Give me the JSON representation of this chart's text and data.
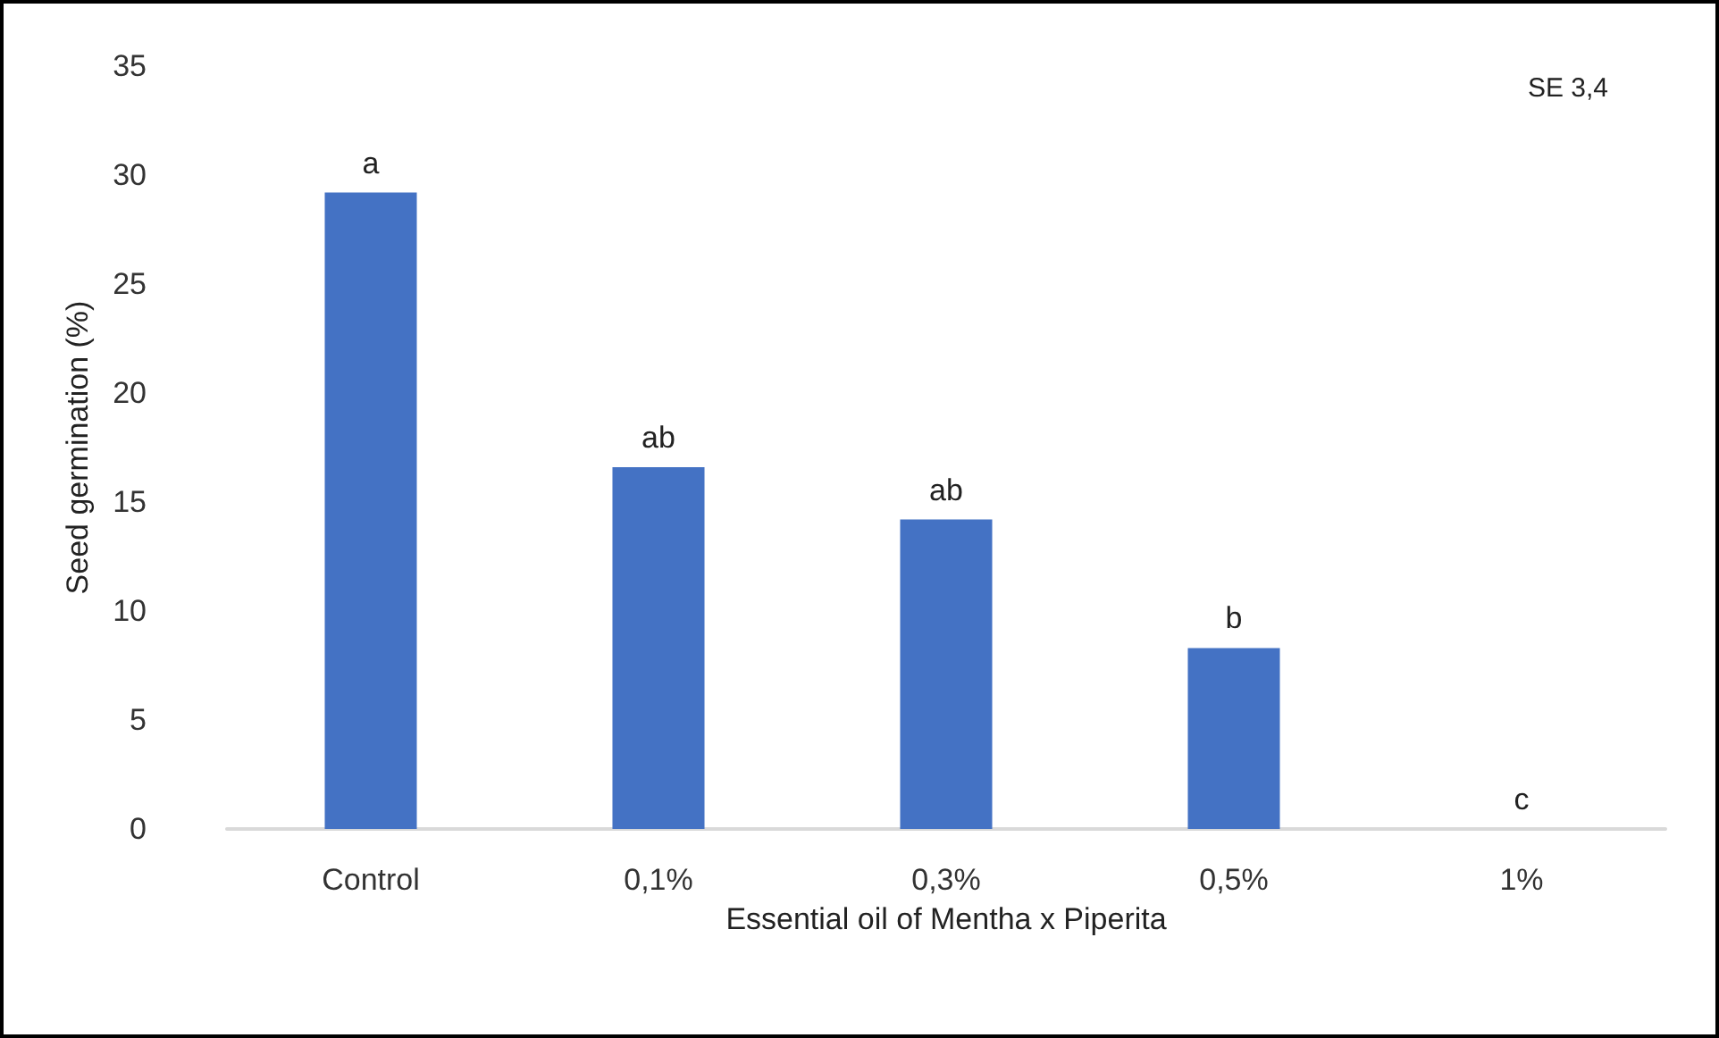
{
  "chart_data": {
    "type": "bar",
    "xlabel": "Essential oil of Mentha x Piperita",
    "ylabel": "Seed germination (%)",
    "categories": [
      "Control",
      "0,1%",
      "0,3%",
      "0,5%",
      "1%"
    ],
    "values": [
      29.2,
      16.6,
      14.2,
      8.3,
      0
    ],
    "color": "#4472c4",
    "ylim": [
      0,
      35
    ],
    "yticks": [
      0,
      5,
      10,
      15,
      20,
      25,
      30,
      35
    ],
    "grid": false,
    "annotations": [
      {
        "text": "a",
        "x": "Control",
        "y": 29.2
      },
      {
        "text": "ab",
        "x": "0,1%",
        "y": 16.6
      },
      {
        "text": "ab",
        "x": "0,3%",
        "y": 14.2
      },
      {
        "text": "b",
        "x": "0,5%",
        "y": 8.3
      },
      {
        "text": "c",
        "x": "1%",
        "y": 0
      },
      "SE 3,4"
    ]
  }
}
